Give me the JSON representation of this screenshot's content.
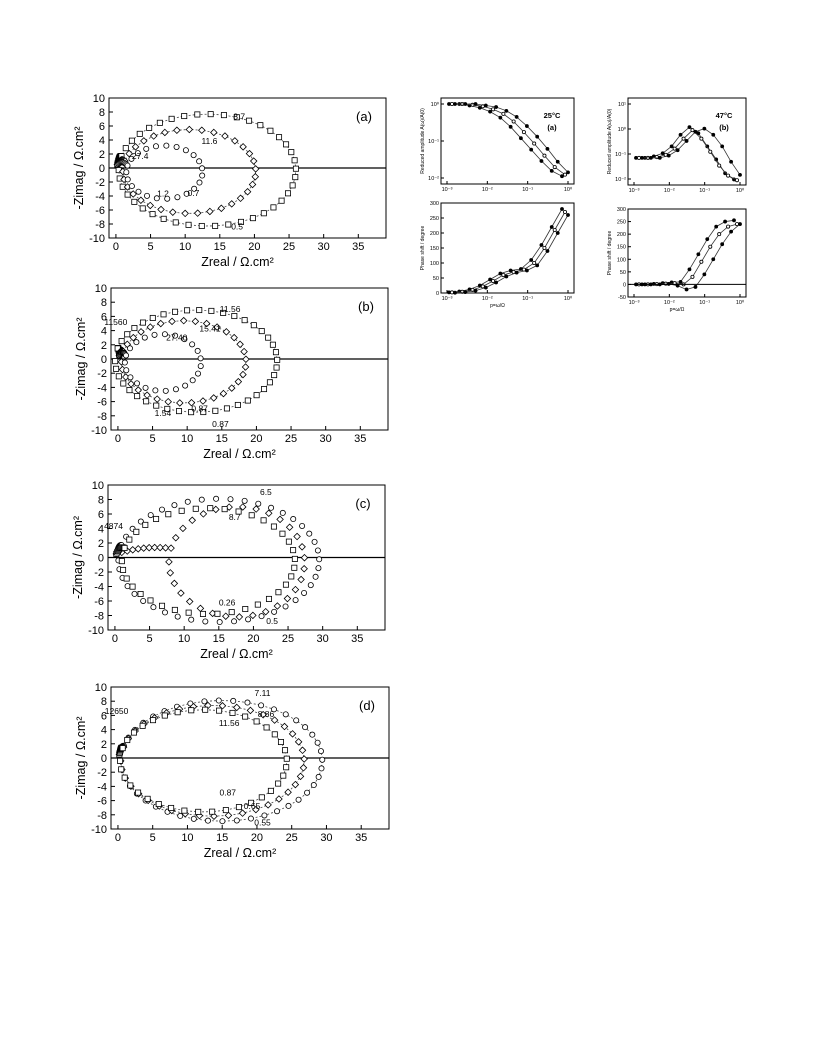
{
  "chart_data": [
    {
      "id": "a",
      "type": "scatter",
      "panel_label": "(a)",
      "xlabel": "Zreal / Ω.cm²",
      "ylabel": "-Zimag / Ω.cm²",
      "xlim": [
        -1,
        39
      ],
      "ylim": [
        -10,
        10
      ],
      "xticks": [
        0,
        5,
        10,
        15,
        20,
        25,
        30,
        35
      ],
      "yticks": [
        -10,
        -8,
        -6,
        -4,
        -2,
        0,
        2,
        4,
        6,
        8,
        10
      ],
      "annotations": [
        {
          "text": "8.7",
          "x": 17.8,
          "y": 6.9
        },
        {
          "text": "11.6",
          "x": 13.5,
          "y": 3.4
        },
        {
          "text": "27.4",
          "x": 3.5,
          "y": 1.3
        },
        {
          "text": "1.2",
          "x": 6.8,
          "y": -4.1
        },
        {
          "text": "0.7",
          "x": 11.2,
          "y": -4.0
        },
        {
          "text": "0.5",
          "x": 17.5,
          "y": -8.8
        }
      ],
      "series": [
        {
          "marker": "square",
          "loop_center": [
            13.2,
            -0.3
          ],
          "loop_r": [
            12.8,
            8.0
          ],
          "start_deg": 185,
          "end_deg": -180,
          "n": 40,
          "dashed": true
        },
        {
          "marker": "diamond",
          "loop_center": [
            10.6,
            -0.5
          ],
          "loop_r": [
            9.6,
            6.0
          ],
          "start_deg": 185,
          "end_deg": -180,
          "n": 32,
          "dashed": true
        },
        {
          "marker": "circle",
          "loop_center": [
            7.0,
            -0.6
          ],
          "loop_r": [
            5.5,
            3.8
          ],
          "start_deg": 170,
          "end_deg": -170,
          "n": 22,
          "dashed": false
        }
      ]
    },
    {
      "id": "b",
      "type": "scatter",
      "panel_label": "(b)",
      "xlabel": "Zreal / Ω.cm²",
      "ylabel": "-Zimag / Ω.cm²",
      "xlim": [
        -1,
        39
      ],
      "ylim": [
        -10,
        10
      ],
      "xticks": [
        0,
        5,
        10,
        15,
        20,
        25,
        30,
        35
      ],
      "yticks": [
        -10,
        -8,
        -6,
        -4,
        -2,
        0,
        2,
        4,
        6,
        8,
        10
      ],
      "annotations": [
        {
          "text": "11.56",
          "x": 16.2,
          "y": 6.6
        },
        {
          "text": "11560",
          "x": -0.3,
          "y": 4.8
        },
        {
          "text": "15.41",
          "x": 13.3,
          "y": 3.9
        },
        {
          "text": "27.40",
          "x": 8.5,
          "y": 2.6
        },
        {
          "text": "1.54",
          "x": 6.5,
          "y": -8.0
        },
        {
          "text": "0.87",
          "x": 11.8,
          "y": -7.4
        },
        {
          "text": "0.87",
          "x": 14.8,
          "y": -9.6
        }
      ],
      "series": [
        {
          "marker": "square",
          "loop_center": [
            11.3,
            -0.3
          ],
          "loop_r": [
            11.7,
            7.2
          ],
          "start_deg": 185,
          "end_deg": -180,
          "n": 40,
          "dashed": true
        },
        {
          "marker": "diamond",
          "loop_center": [
            9.5,
            -0.4
          ],
          "loop_r": [
            9.0,
            5.8
          ],
          "start_deg": 185,
          "end_deg": -180,
          "n": 32,
          "dashed": true
        },
        {
          "marker": "circle",
          "loop_center": [
            6.5,
            -0.5
          ],
          "loop_r": [
            5.5,
            4.0
          ],
          "start_deg": 170,
          "end_deg": -170,
          "n": 22,
          "dashed": false
        }
      ]
    },
    {
      "id": "c",
      "type": "scatter",
      "panel_label": "(c)",
      "xlabel": "Zreal / Ω.cm²",
      "ylabel": "-Zimag / Ω.cm²",
      "xlim": [
        -1,
        39
      ],
      "ylim": [
        -10,
        10
      ],
      "xticks": [
        0,
        5,
        10,
        15,
        20,
        25,
        30,
        35
      ],
      "yticks": [
        -10,
        -8,
        -6,
        -4,
        -2,
        0,
        2,
        4,
        6,
        8,
        10
      ],
      "annotations": [
        {
          "text": "6.5",
          "x": 21.8,
          "y": 8.6
        },
        {
          "text": "8.7",
          "x": 17.3,
          "y": 5.2
        },
        {
          "text": "4874",
          "x": -0.2,
          "y": 3.9
        },
        {
          "text": "0.26",
          "x": 16.2,
          "y": -6.6
        },
        {
          "text": "0.5",
          "x": 22.7,
          "y": -9.2
        }
      ],
      "series": [
        {
          "marker": "circle",
          "loop_center": [
            15.0,
            -0.4
          ],
          "loop_r": [
            14.5,
            8.5
          ],
          "start_deg": 185,
          "end_deg": -185,
          "n": 42,
          "dashed": false
        },
        {
          "marker": "diamond",
          "loop_center": [
            17.6,
            -0.6
          ],
          "loop_r": [
            9.8,
            7.6
          ],
          "start_deg": 170,
          "end_deg": -175,
          "n": 30,
          "dashed": false
        },
        {
          "marker": "square",
          "loop_center": [
            13.5,
            -0.5
          ],
          "loop_r": [
            12.5,
            7.3
          ],
          "start_deg": 185,
          "end_deg": -180,
          "n": 36,
          "dashed": false
        }
      ]
    },
    {
      "id": "d",
      "type": "scatter",
      "panel_label": "(d)",
      "xlabel": "Zreal / Ω.cm²",
      "ylabel": "-Zimag / Ω.cm²",
      "xlim": [
        -1,
        39
      ],
      "ylim": [
        -10,
        10
      ],
      "xticks": [
        0,
        5,
        10,
        15,
        20,
        25,
        30,
        35
      ],
      "yticks": [
        -10,
        -8,
        -6,
        -4,
        -2,
        0,
        2,
        4,
        6,
        8,
        10
      ],
      "annotations": [
        {
          "text": "7.11",
          "x": 20.8,
          "y": 8.7
        },
        {
          "text": "8.86",
          "x": 21.3,
          "y": 5.8
        },
        {
          "text": "11.56",
          "x": 16.0,
          "y": 4.5
        },
        {
          "text": "12650",
          "x": -0.2,
          "y": 6.2
        },
        {
          "text": "0.87",
          "x": 15.8,
          "y": -5.3
        },
        {
          "text": "0.65",
          "x": 19.3,
          "y": -7.2
        },
        {
          "text": "0.55",
          "x": 20.8,
          "y": -9.5
        }
      ],
      "series": [
        {
          "marker": "circle",
          "loop_center": [
            14.9,
            -0.4
          ],
          "loop_r": [
            14.5,
            8.5
          ],
          "start_deg": 185,
          "end_deg": -185,
          "n": 42,
          "dashed": true
        },
        {
          "marker": "diamond",
          "loop_center": [
            13.6,
            -0.4
          ],
          "loop_r": [
            13.2,
            7.8
          ],
          "start_deg": 185,
          "end_deg": -180,
          "n": 38,
          "dashed": true
        },
        {
          "marker": "square",
          "loop_center": [
            12.3,
            -0.4
          ],
          "loop_r": [
            12.0,
            7.2
          ],
          "start_deg": 185,
          "end_deg": -180,
          "n": 36,
          "dashed": true
        }
      ]
    },
    {
      "id": "ra",
      "type": "line",
      "panel_label": "(a)",
      "temperature": "25°C",
      "ylabel": "Reduced amplitude A(ω)/A(0)",
      "xticks": [
        "10⁻³",
        "10⁻²",
        "10⁻¹",
        "10⁰"
      ],
      "yticks": [
        "10⁰",
        "10⁻¹",
        "10⁻²"
      ],
      "series": [
        {
          "marker": "filled",
          "values": [
            1,
            1,
            0.98,
            0.95,
            0.9,
            0.82,
            0.7,
            0.55,
            0.4,
            0.25,
            0.12,
            0.05
          ]
        },
        {
          "marker": "open",
          "values": [
            1,
            1,
            0.99,
            0.97,
            0.93,
            0.87,
            0.77,
            0.63,
            0.48,
            0.32,
            0.17,
            0.07
          ]
        },
        {
          "marker": "filled",
          "values": [
            1,
            1,
            1,
            0.98,
            0.96,
            0.91,
            0.83,
            0.71,
            0.57,
            0.41,
            0.24,
            0.1
          ]
        }
      ]
    },
    {
      "id": "rb",
      "type": "line",
      "panel_label": "(b)",
      "temperature": "47°C",
      "ylabel": "Reduced amplitude A(ω)/A(0)",
      "xticks": [
        "10⁻³",
        "10⁻²",
        "10⁻¹",
        "10⁰"
      ],
      "yticks": [
        "10¹",
        "10⁰",
        "10⁻¹",
        "10⁻²"
      ],
      "series": [
        {
          "marker": "filled",
          "values": [
            0.3,
            0.3,
            0.32,
            0.36,
            0.45,
            0.6,
            0.7,
            0.62,
            0.45,
            0.28,
            0.1,
            0.02
          ]
        },
        {
          "marker": "open",
          "values": [
            0.3,
            0.3,
            0.31,
            0.34,
            0.42,
            0.55,
            0.66,
            0.55,
            0.38,
            0.2,
            0.07,
            0.01
          ]
        },
        {
          "marker": "filled",
          "values": [
            0.3,
            0.3,
            0.3,
            0.33,
            0.4,
            0.52,
            0.64,
            0.68,
            0.6,
            0.45,
            0.25,
            0.08
          ]
        }
      ]
    },
    {
      "id": "pa",
      "type": "line",
      "ylabel": "Phase shift / degree",
      "xlabel": "p=ω/Ω",
      "xticks": [
        "10⁻³",
        "10⁻²",
        "10⁻¹",
        "10⁰"
      ],
      "yticks": [
        "0",
        "50",
        "100",
        "150",
        "200",
        "250",
        "300"
      ],
      "ylim": [
        0,
        300
      ],
      "series": [
        {
          "marker": "filled",
          "values": [
            2,
            5,
            12,
            25,
            45,
            65,
            75,
            80,
            110,
            160,
            220,
            280
          ]
        },
        {
          "marker": "open",
          "values": [
            2,
            4,
            10,
            22,
            40,
            60,
            70,
            78,
            100,
            150,
            210,
            270
          ]
        },
        {
          "marker": "filled",
          "values": [
            1,
            3,
            8,
            18,
            35,
            55,
            68,
            75,
            92,
            140,
            200,
            260
          ]
        }
      ]
    },
    {
      "id": "pb",
      "type": "line",
      "ylabel": "Phase shift / degree",
      "xlabel": "p=ω/Ω",
      "xticks": [
        "10⁻³",
        "10⁻²",
        "10⁻¹",
        "10⁰"
      ],
      "yticks": [
        "-50",
        "0",
        "50",
        "100",
        "150",
        "200",
        "250",
        "300"
      ],
      "ylim": [
        -50,
        300
      ],
      "series": [
        {
          "marker": "filled",
          "values": [
            0,
            0,
            2,
            5,
            8,
            10,
            60,
            120,
            180,
            230,
            250,
            255
          ]
        },
        {
          "marker": "open",
          "values": [
            0,
            0,
            1,
            3,
            5,
            0,
            30,
            90,
            150,
            200,
            230,
            240
          ]
        },
        {
          "marker": "filled",
          "values": [
            0,
            0,
            0,
            2,
            -5,
            -20,
            -10,
            40,
            100,
            160,
            210,
            240
          ]
        }
      ]
    }
  ]
}
